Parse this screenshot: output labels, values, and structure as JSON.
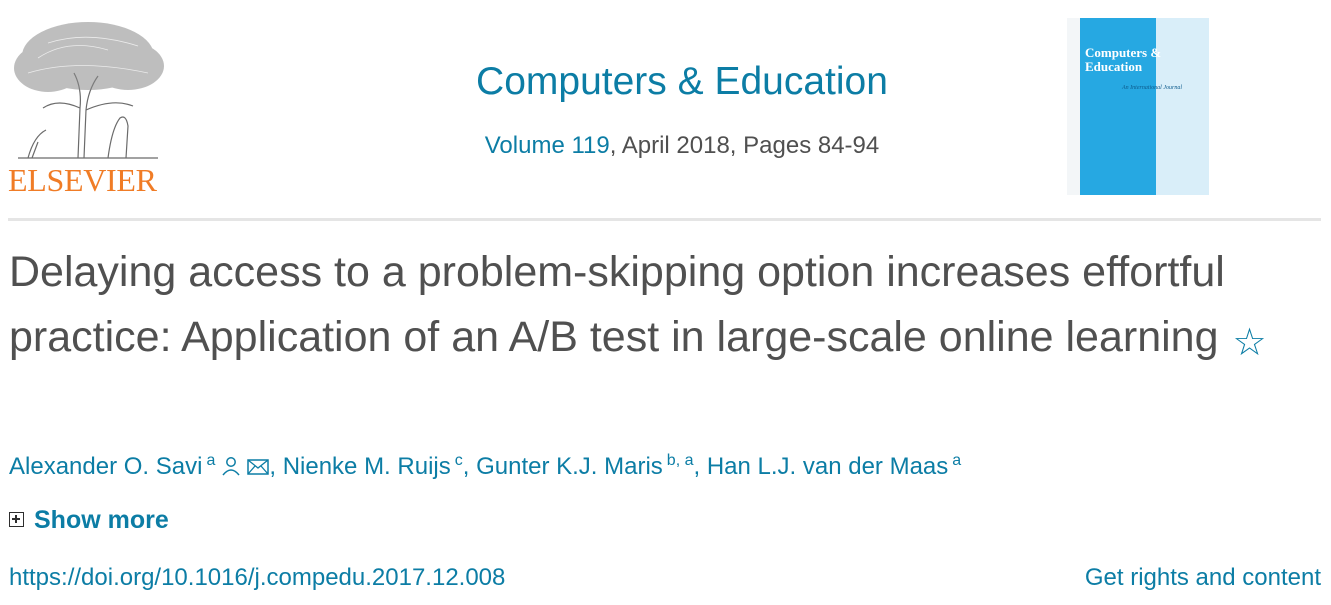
{
  "publisher": {
    "logo_text": "ELSEVIER",
    "logo_color": "#f07c26"
  },
  "journal": {
    "title": "Computers & Education",
    "volume_link": "Volume 119",
    "issue_details": ", April 2018, Pages 84-94",
    "cover": {
      "title": "Computers & Education",
      "subtitle": "An International Journal",
      "color": "#26a8e2"
    }
  },
  "article": {
    "title": "Delaying access to a problem-skipping option increases effortful practice: Application of an A/B test in large-scale online learning",
    "authors": [
      {
        "name": "Alexander O. Savi",
        "affiliation": "a"
      },
      {
        "name": "Nienke M. Ruijs",
        "affiliation": "c"
      },
      {
        "name": "Gunter K.J. Maris",
        "affiliation": "b, a"
      },
      {
        "name": "Han L.J. van der Maas",
        "affiliation": "a"
      }
    ],
    "show_more": "Show more",
    "doi": "https://doi.org/10.1016/j.compedu.2017.12.008",
    "rights": "Get rights and content"
  },
  "theme": {
    "link_color": "#0c7da5",
    "text_color": "#505050"
  },
  "icons": [
    "tree-logo-icon",
    "star-icon",
    "person-icon",
    "envelope-icon",
    "plus-box-icon"
  ]
}
